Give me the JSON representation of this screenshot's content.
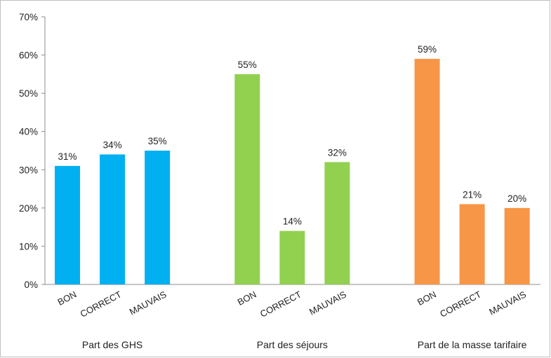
{
  "chart_data": {
    "type": "bar",
    "ylim": [
      0,
      0.7
    ],
    "y_ticks": [
      "0%",
      "10%",
      "20%",
      "30%",
      "40%",
      "50%",
      "60%",
      "70%"
    ],
    "grid": false,
    "legend": "none",
    "groups": [
      {
        "name": "Part des GHS",
        "color": "#00b0f0",
        "categories": [
          "BON",
          "CORRECT",
          "MAUVAIS"
        ],
        "values": [
          0.31,
          0.34,
          0.35
        ],
        "labels": [
          "31%",
          "34%",
          "35%"
        ]
      },
      {
        "name": "Part des séjours",
        "color": "#92d050",
        "categories": [
          "BON",
          "CORRECT",
          "MAUVAIS"
        ],
        "values": [
          0.55,
          0.14,
          0.32
        ],
        "labels": [
          "55%",
          "14%",
          "32%"
        ]
      },
      {
        "name": "Part de la masse tarifaire",
        "color": "#f79646",
        "categories": [
          "BON",
          "CORRECT",
          "MAUVAIS"
        ],
        "values": [
          0.59,
          0.21,
          0.2
        ],
        "labels": [
          "59%",
          "21%",
          "20%"
        ]
      }
    ]
  }
}
